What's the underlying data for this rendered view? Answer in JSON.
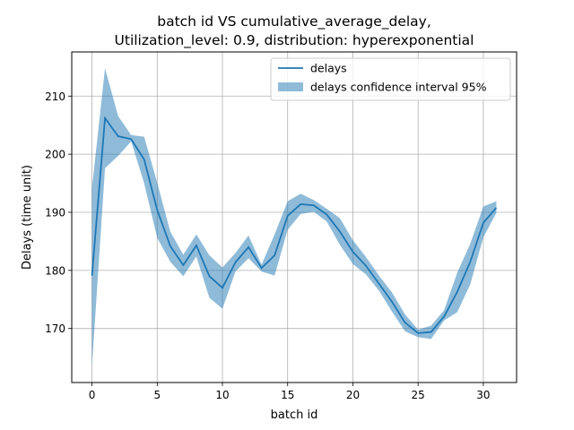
{
  "chart_data": {
    "type": "line",
    "title_line1": "batch id VS cumulative_average_delay,",
    "title_line2": "Utilization_level: 0.9, distribution: hyperexponential",
    "xlabel": "batch id",
    "ylabel": "Delays (time unit)",
    "xlim": [
      -1.55,
      32.55
    ],
    "ylim": [
      160.7,
      217.6
    ],
    "xticks": [
      0,
      5,
      10,
      15,
      20,
      25,
      30
    ],
    "yticks": [
      170,
      180,
      190,
      200,
      210
    ],
    "grid": true,
    "legend_position": "top-right",
    "line_color": "#1f77b4",
    "band_color": "#1f77b4",
    "series": [
      {
        "name": "delays",
        "x": [
          0,
          1,
          2,
          3,
          4,
          5,
          6,
          7,
          8,
          9,
          10,
          11,
          12,
          13,
          14,
          15,
          16,
          17,
          18,
          19,
          20,
          21,
          22,
          23,
          24,
          25,
          26,
          27,
          28,
          29,
          30,
          31
        ],
        "values": [
          179.1,
          206.2,
          203.1,
          202.6,
          199.1,
          190.4,
          184.2,
          180.9,
          184.3,
          179.0,
          177.0,
          181.4,
          184.0,
          180.4,
          182.6,
          189.4,
          191.4,
          191.2,
          189.6,
          186.7,
          183.2,
          180.8,
          177.7,
          174.6,
          171.0,
          169.2,
          169.4,
          172.1,
          176.3,
          181.5,
          188.2,
          190.8
        ]
      },
      {
        "name": "delays confidence interval 95%",
        "x": [
          0,
          1,
          2,
          3,
          4,
          5,
          6,
          7,
          8,
          9,
          10,
          11,
          12,
          13,
          14,
          15,
          16,
          17,
          18,
          19,
          20,
          21,
          22,
          23,
          24,
          25,
          26,
          27,
          28,
          29,
          30,
          31
        ],
        "lower": [
          163.5,
          197.6,
          199.7,
          202.2,
          195.0,
          185.6,
          181.5,
          179.0,
          182.4,
          175.3,
          173.4,
          179.8,
          182.1,
          179.8,
          179.1,
          187.0,
          189.7,
          190.1,
          188.4,
          184.4,
          181.1,
          179.3,
          176.5,
          172.9,
          169.5,
          168.5,
          168.2,
          171.4,
          172.8,
          177.6,
          185.7,
          189.9
        ],
        "upper": [
          194.2,
          214.8,
          206.6,
          203.3,
          203.0,
          195.1,
          186.7,
          182.7,
          186.2,
          182.6,
          180.5,
          183.0,
          186.0,
          181.0,
          186.2,
          191.9,
          193.2,
          192.1,
          190.6,
          189.0,
          185.2,
          182.3,
          179.1,
          176.2,
          172.4,
          169.8,
          170.5,
          173.2,
          179.6,
          184.6,
          191.0,
          191.9
        ]
      }
    ]
  }
}
